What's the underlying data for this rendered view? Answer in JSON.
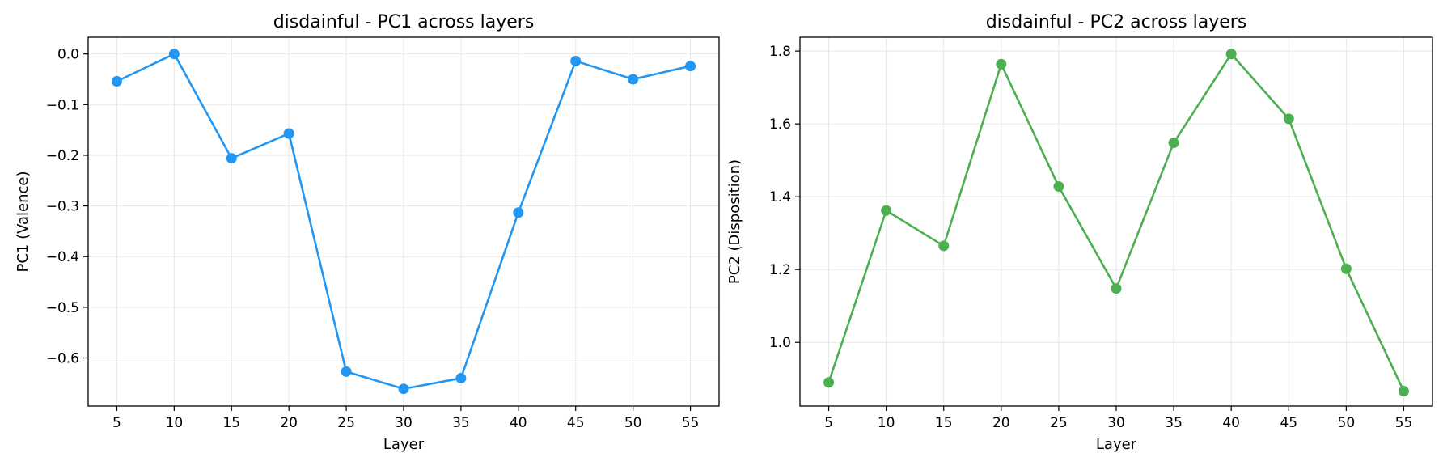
{
  "chart_data": [
    {
      "type": "line",
      "title": "disdainful - PC1 across layers",
      "xlabel": "Layer",
      "ylabel": "PC1 (Valence)",
      "x": [
        5,
        10,
        15,
        20,
        25,
        30,
        35,
        40,
        45,
        50,
        55
      ],
      "xticks": [
        5,
        10,
        15,
        20,
        25,
        30,
        35,
        40,
        45,
        50,
        55
      ],
      "xlim": [
        2.5,
        57.5
      ],
      "ylim": [
        -0.695,
        0.033
      ],
      "yticks": [
        0.0,
        -0.1,
        -0.2,
        -0.3,
        -0.4,
        -0.5,
        -0.6
      ],
      "ytick_labels": [
        "0.0",
        "−0.1",
        "−0.2",
        "−0.3",
        "−0.4",
        "−0.5",
        "−0.6"
      ],
      "grid": true,
      "color": "#2196F3",
      "series": [
        {
          "values": [
            -0.054,
            0.0,
            -0.206,
            -0.157,
            -0.627,
            -0.661,
            -0.64,
            -0.313,
            -0.014,
            -0.05,
            -0.024
          ]
        }
      ]
    },
    {
      "type": "line",
      "title": "disdainful - PC2 across layers",
      "xlabel": "Layer",
      "ylabel": "PC2 (Disposition)",
      "x": [
        5,
        10,
        15,
        20,
        25,
        30,
        35,
        40,
        45,
        50,
        55
      ],
      "xticks": [
        5,
        10,
        15,
        20,
        25,
        30,
        35,
        40,
        45,
        50,
        55
      ],
      "xlim": [
        2.5,
        57.5
      ],
      "ylim": [
        0.825,
        1.838
      ],
      "yticks": [
        1.0,
        1.2,
        1.4,
        1.6,
        1.8
      ],
      "ytick_labels": [
        "1.0",
        "1.2",
        "1.4",
        "1.6",
        "1.8"
      ],
      "grid": true,
      "color": "#4CAF50",
      "series": [
        {
          "values": [
            0.89,
            1.362,
            1.265,
            1.764,
            1.428,
            1.148,
            1.548,
            1.792,
            1.614,
            1.202,
            0.866
          ]
        }
      ]
    }
  ]
}
